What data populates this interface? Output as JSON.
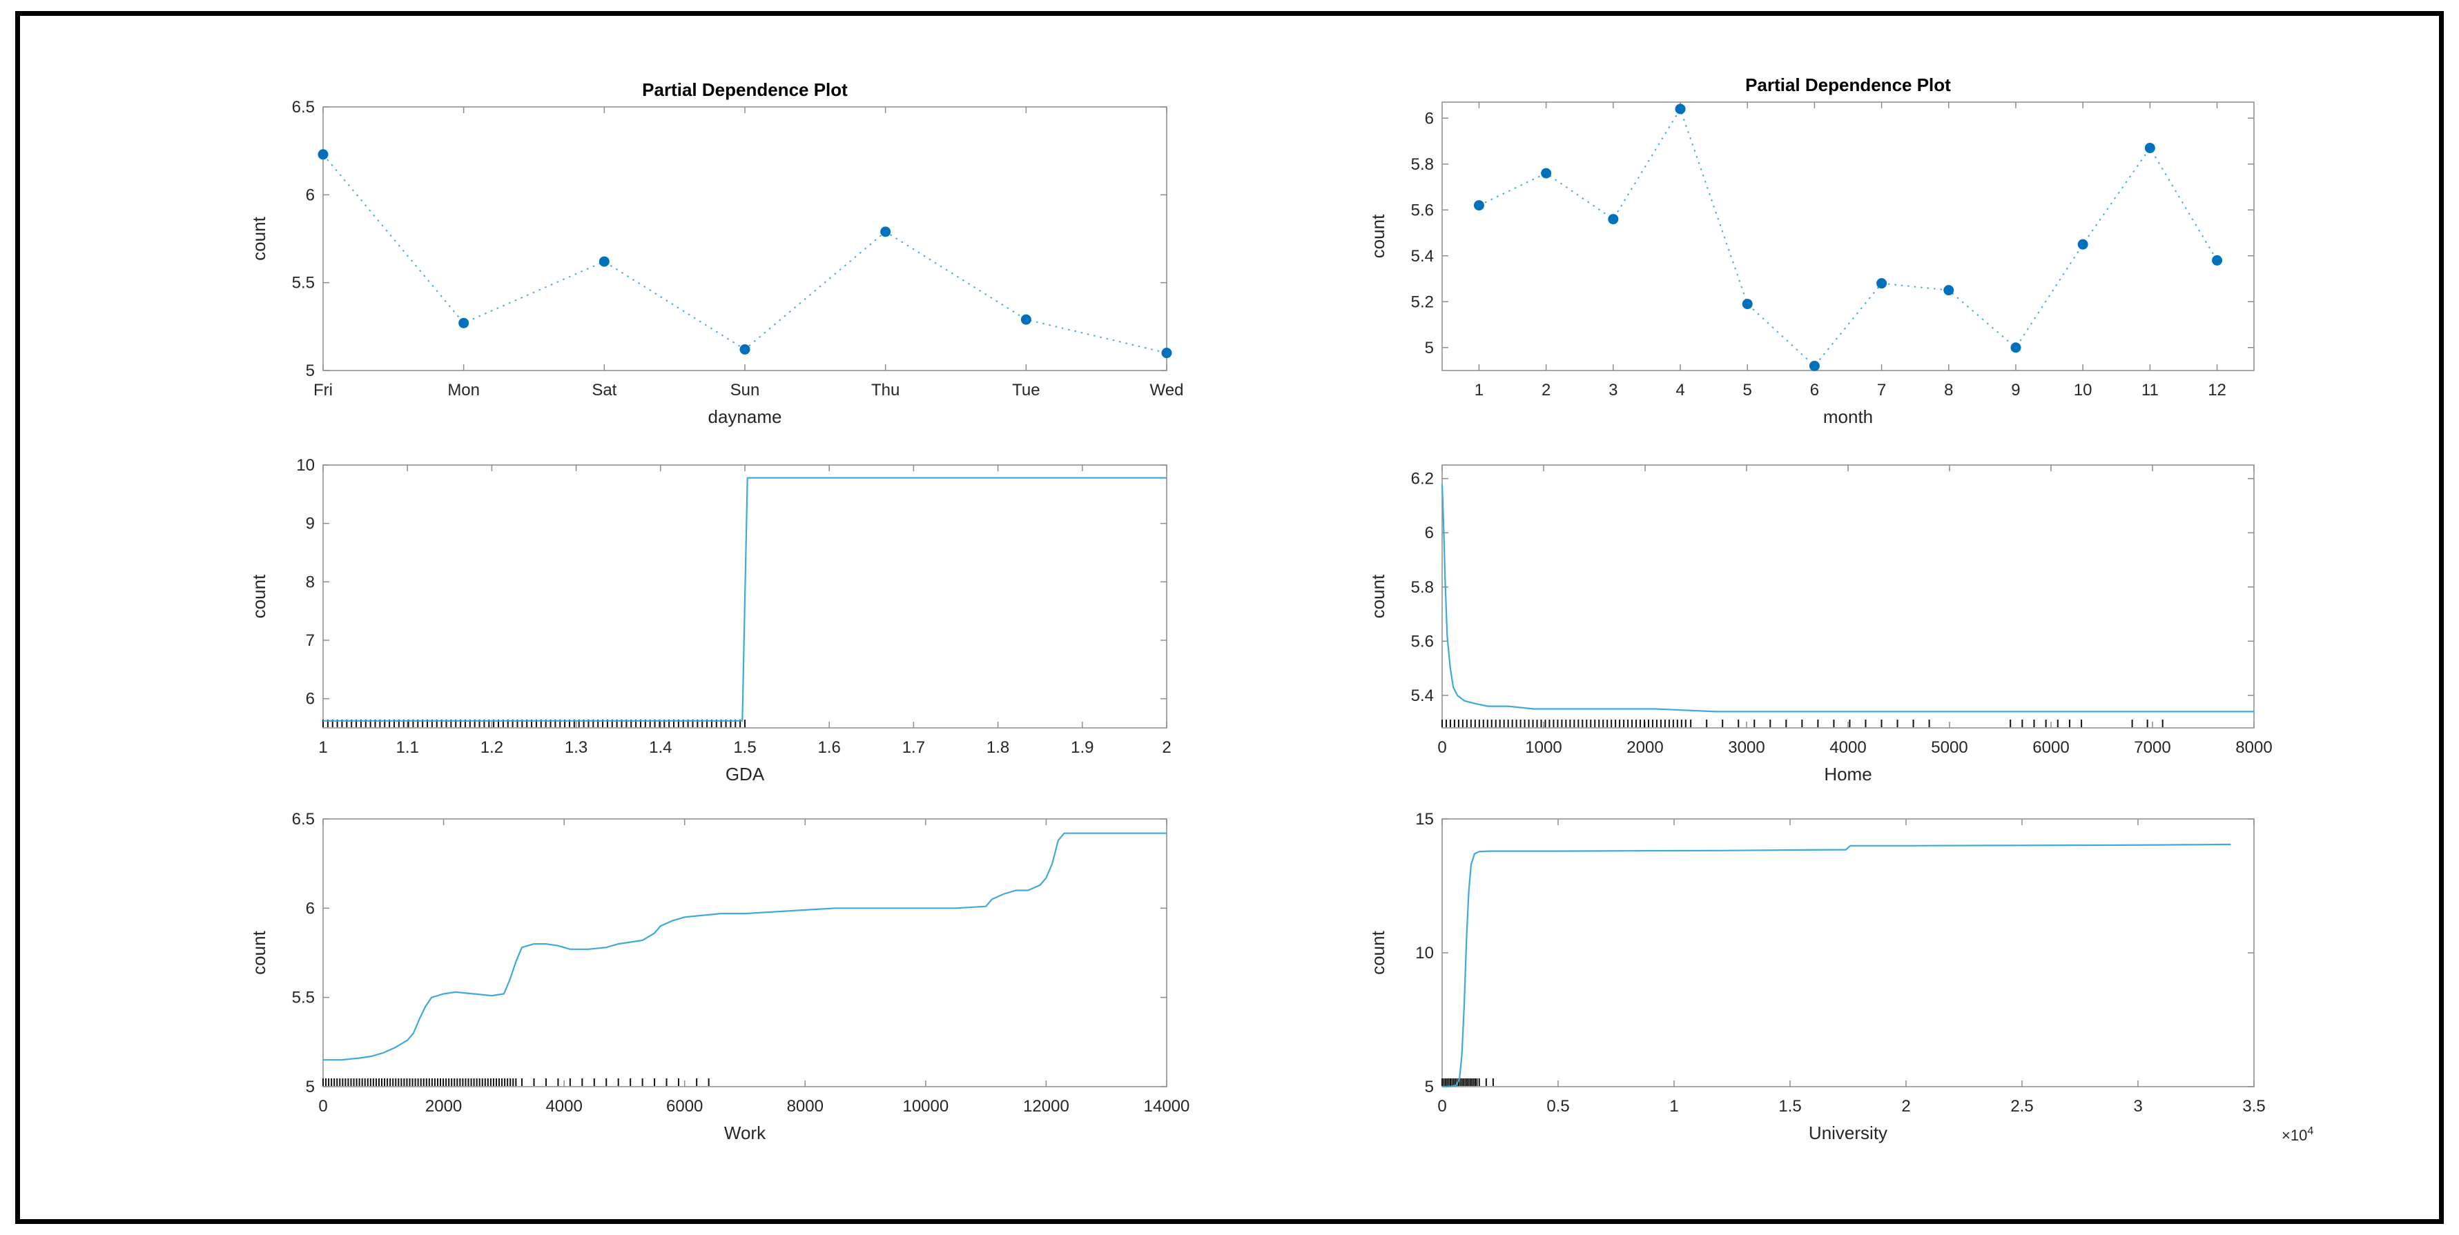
{
  "figure": {
    "background": "#ffffff",
    "frame_color": "#000000"
  },
  "style": {
    "line_color": "#3FA9DC",
    "marker_color": "#0072BD",
    "axis_color": "#8C8C8C",
    "text_color": "#262626",
    "title_color": "#000000",
    "rug_color": "#111111"
  },
  "chart_data": [
    {
      "id": "dayname",
      "type": "line",
      "title": "Partial Dependence Plot",
      "xlabel": "dayname",
      "ylabel": "count",
      "categories": [
        "Fri",
        "Mon",
        "Sat",
        "Sun",
        "Thu",
        "Tue",
        "Wed"
      ],
      "values": [
        6.23,
        5.27,
        5.62,
        5.12,
        5.79,
        5.29,
        5.1
      ],
      "xlim": [
        0,
        6
      ],
      "ylim": [
        5,
        6.5
      ],
      "yticks": [
        5,
        5.5,
        6,
        6.5
      ],
      "line_style": "dotted",
      "marker": "circle"
    },
    {
      "id": "month",
      "type": "line",
      "title": "Partial Dependence Plot",
      "xlabel": "month",
      "ylabel": "count",
      "x": [
        1,
        2,
        3,
        4,
        5,
        6,
        7,
        8,
        9,
        10,
        11,
        12
      ],
      "y": [
        5.62,
        5.76,
        5.56,
        6.04,
        5.19,
        4.92,
        5.28,
        5.25,
        5.0,
        5.45,
        5.87,
        5.38
      ],
      "xlim": [
        0.45,
        12.55
      ],
      "ylim": [
        4.9,
        6.07
      ],
      "xticks": [
        1,
        2,
        3,
        4,
        5,
        6,
        7,
        8,
        9,
        10,
        11,
        12
      ],
      "yticks": [
        5,
        5.2,
        5.4,
        5.6,
        5.8,
        6
      ],
      "line_style": "dotted",
      "marker": "circle"
    },
    {
      "id": "gda",
      "type": "line",
      "title": "",
      "xlabel": "GDA",
      "ylabel": "count",
      "x": [
        1,
        1.497,
        1.503,
        2
      ],
      "y": [
        5.62,
        5.62,
        9.78,
        9.78
      ],
      "xlim": [
        1,
        2
      ],
      "ylim": [
        5.5,
        10
      ],
      "xticks": [
        1,
        1.1,
        1.2,
        1.3,
        1.4,
        1.5,
        1.6,
        1.7,
        1.8,
        1.9,
        2
      ],
      "yticks": [
        6,
        7,
        8,
        9,
        10
      ],
      "line_style": "solid",
      "rug_ranges": [
        [
          1,
          1.5,
          90
        ]
      ]
    },
    {
      "id": "home",
      "type": "line",
      "title": "",
      "xlabel": "Home",
      "ylabel": "count",
      "x": [
        0,
        15,
        30,
        50,
        80,
        110,
        150,
        220,
        320,
        450,
        650,
        900,
        1200,
        1600,
        2100,
        2700,
        3400,
        4200,
        5100,
        6100,
        7000,
        8000
      ],
      "y": [
        6.18,
        6.02,
        5.82,
        5.62,
        5.5,
        5.43,
        5.4,
        5.38,
        5.37,
        5.36,
        5.36,
        5.35,
        5.35,
        5.35,
        5.35,
        5.34,
        5.34,
        5.34,
        5.34,
        5.34,
        5.34,
        5.34
      ],
      "xlim": [
        0,
        8000
      ],
      "ylim": [
        5.28,
        6.25
      ],
      "xticks": [
        0,
        1000,
        2000,
        3000,
        4000,
        5000,
        6000,
        7000,
        8000
      ],
      "yticks": [
        5.4,
        5.6,
        5.8,
        6,
        6.2
      ],
      "line_style": "solid",
      "rug_ranges": [
        [
          0,
          2400,
          60
        ],
        [
          2450,
          4800,
          16
        ],
        [
          5600,
          6300,
          7
        ],
        [
          6800,
          7100,
          3
        ]
      ]
    },
    {
      "id": "work",
      "type": "line",
      "title": "",
      "xlabel": "Work",
      "ylabel": "count",
      "x": [
        0,
        300,
        600,
        800,
        1000,
        1200,
        1400,
        1500,
        1600,
        1700,
        1800,
        2000,
        2200,
        2500,
        2800,
        3000,
        3100,
        3200,
        3300,
        3500,
        3700,
        3900,
        4100,
        4400,
        4700,
        4900,
        5100,
        5300,
        5500,
        5600,
        5800,
        6000,
        6300,
        6600,
        7000,
        7500,
        8000,
        8500,
        9000,
        9500,
        10000,
        10500,
        11000,
        11100,
        11300,
        11500,
        11700,
        11900,
        12000,
        12100,
        12200,
        12300,
        12600,
        13000,
        13500,
        14000
      ],
      "y": [
        5.15,
        5.15,
        5.16,
        5.17,
        5.19,
        5.22,
        5.26,
        5.3,
        5.38,
        5.45,
        5.5,
        5.52,
        5.53,
        5.52,
        5.51,
        5.52,
        5.6,
        5.7,
        5.78,
        5.8,
        5.8,
        5.79,
        5.77,
        5.77,
        5.78,
        5.8,
        5.81,
        5.82,
        5.86,
        5.9,
        5.93,
        5.95,
        5.96,
        5.97,
        5.97,
        5.98,
        5.99,
        6.0,
        6.0,
        6.0,
        6.0,
        6.0,
        6.01,
        6.05,
        6.08,
        6.1,
        6.1,
        6.13,
        6.17,
        6.25,
        6.38,
        6.42,
        6.42,
        6.42,
        6.42,
        6.42
      ],
      "xlim": [
        0,
        14000
      ],
      "ylim": [
        5,
        6.5
      ],
      "xticks": [
        0,
        2000,
        4000,
        6000,
        8000,
        10000,
        12000,
        14000
      ],
      "yticks": [
        5,
        5.5,
        6,
        6.5
      ],
      "line_style": "solid",
      "rug_ranges": [
        [
          0,
          3200,
          70
        ],
        [
          3300,
          5900,
          14
        ],
        [
          6200,
          6400,
          2
        ]
      ]
    },
    {
      "id": "university",
      "type": "line",
      "title": "",
      "xlabel": "University",
      "ylabel": "count",
      "x": [
        0,
        200,
        400,
        600,
        750,
        850,
        950,
        1050,
        1150,
        1250,
        1400,
        1600,
        2000,
        3000,
        5000,
        8000,
        12000,
        15000,
        17000,
        17400,
        17600,
        18000,
        20000,
        24000,
        28000,
        31000,
        34000
      ],
      "y": [
        5.0,
        5.0,
        5.01,
        5.05,
        5.3,
        6.2,
        8.0,
        10.5,
        12.3,
        13.3,
        13.7,
        13.78,
        13.8,
        13.8,
        13.8,
        13.81,
        13.82,
        13.84,
        13.85,
        13.85,
        14.0,
        14.0,
        14.0,
        14.01,
        14.02,
        14.03,
        14.05
      ],
      "xlim": [
        0,
        35000
      ],
      "ylim": [
        5,
        15
      ],
      "xticks": [
        {
          "v": 0,
          "label": "0"
        },
        {
          "v": 5000,
          "label": "0.5"
        },
        {
          "v": 10000,
          "label": "1"
        },
        {
          "v": 15000,
          "label": "1.5"
        },
        {
          "v": 20000,
          "label": "2"
        },
        {
          "v": 25000,
          "label": "2.5"
        },
        {
          "v": 30000,
          "label": "3"
        },
        {
          "v": 35000,
          "label": "3.5"
        }
      ],
      "yticks": [
        5,
        10,
        15
      ],
      "x_exponent": {
        "base": "×10",
        "power": "4"
      },
      "line_style": "solid",
      "rug_ranges": [
        [
          0,
          1500,
          22
        ],
        [
          1600,
          2200,
          3
        ]
      ]
    }
  ]
}
